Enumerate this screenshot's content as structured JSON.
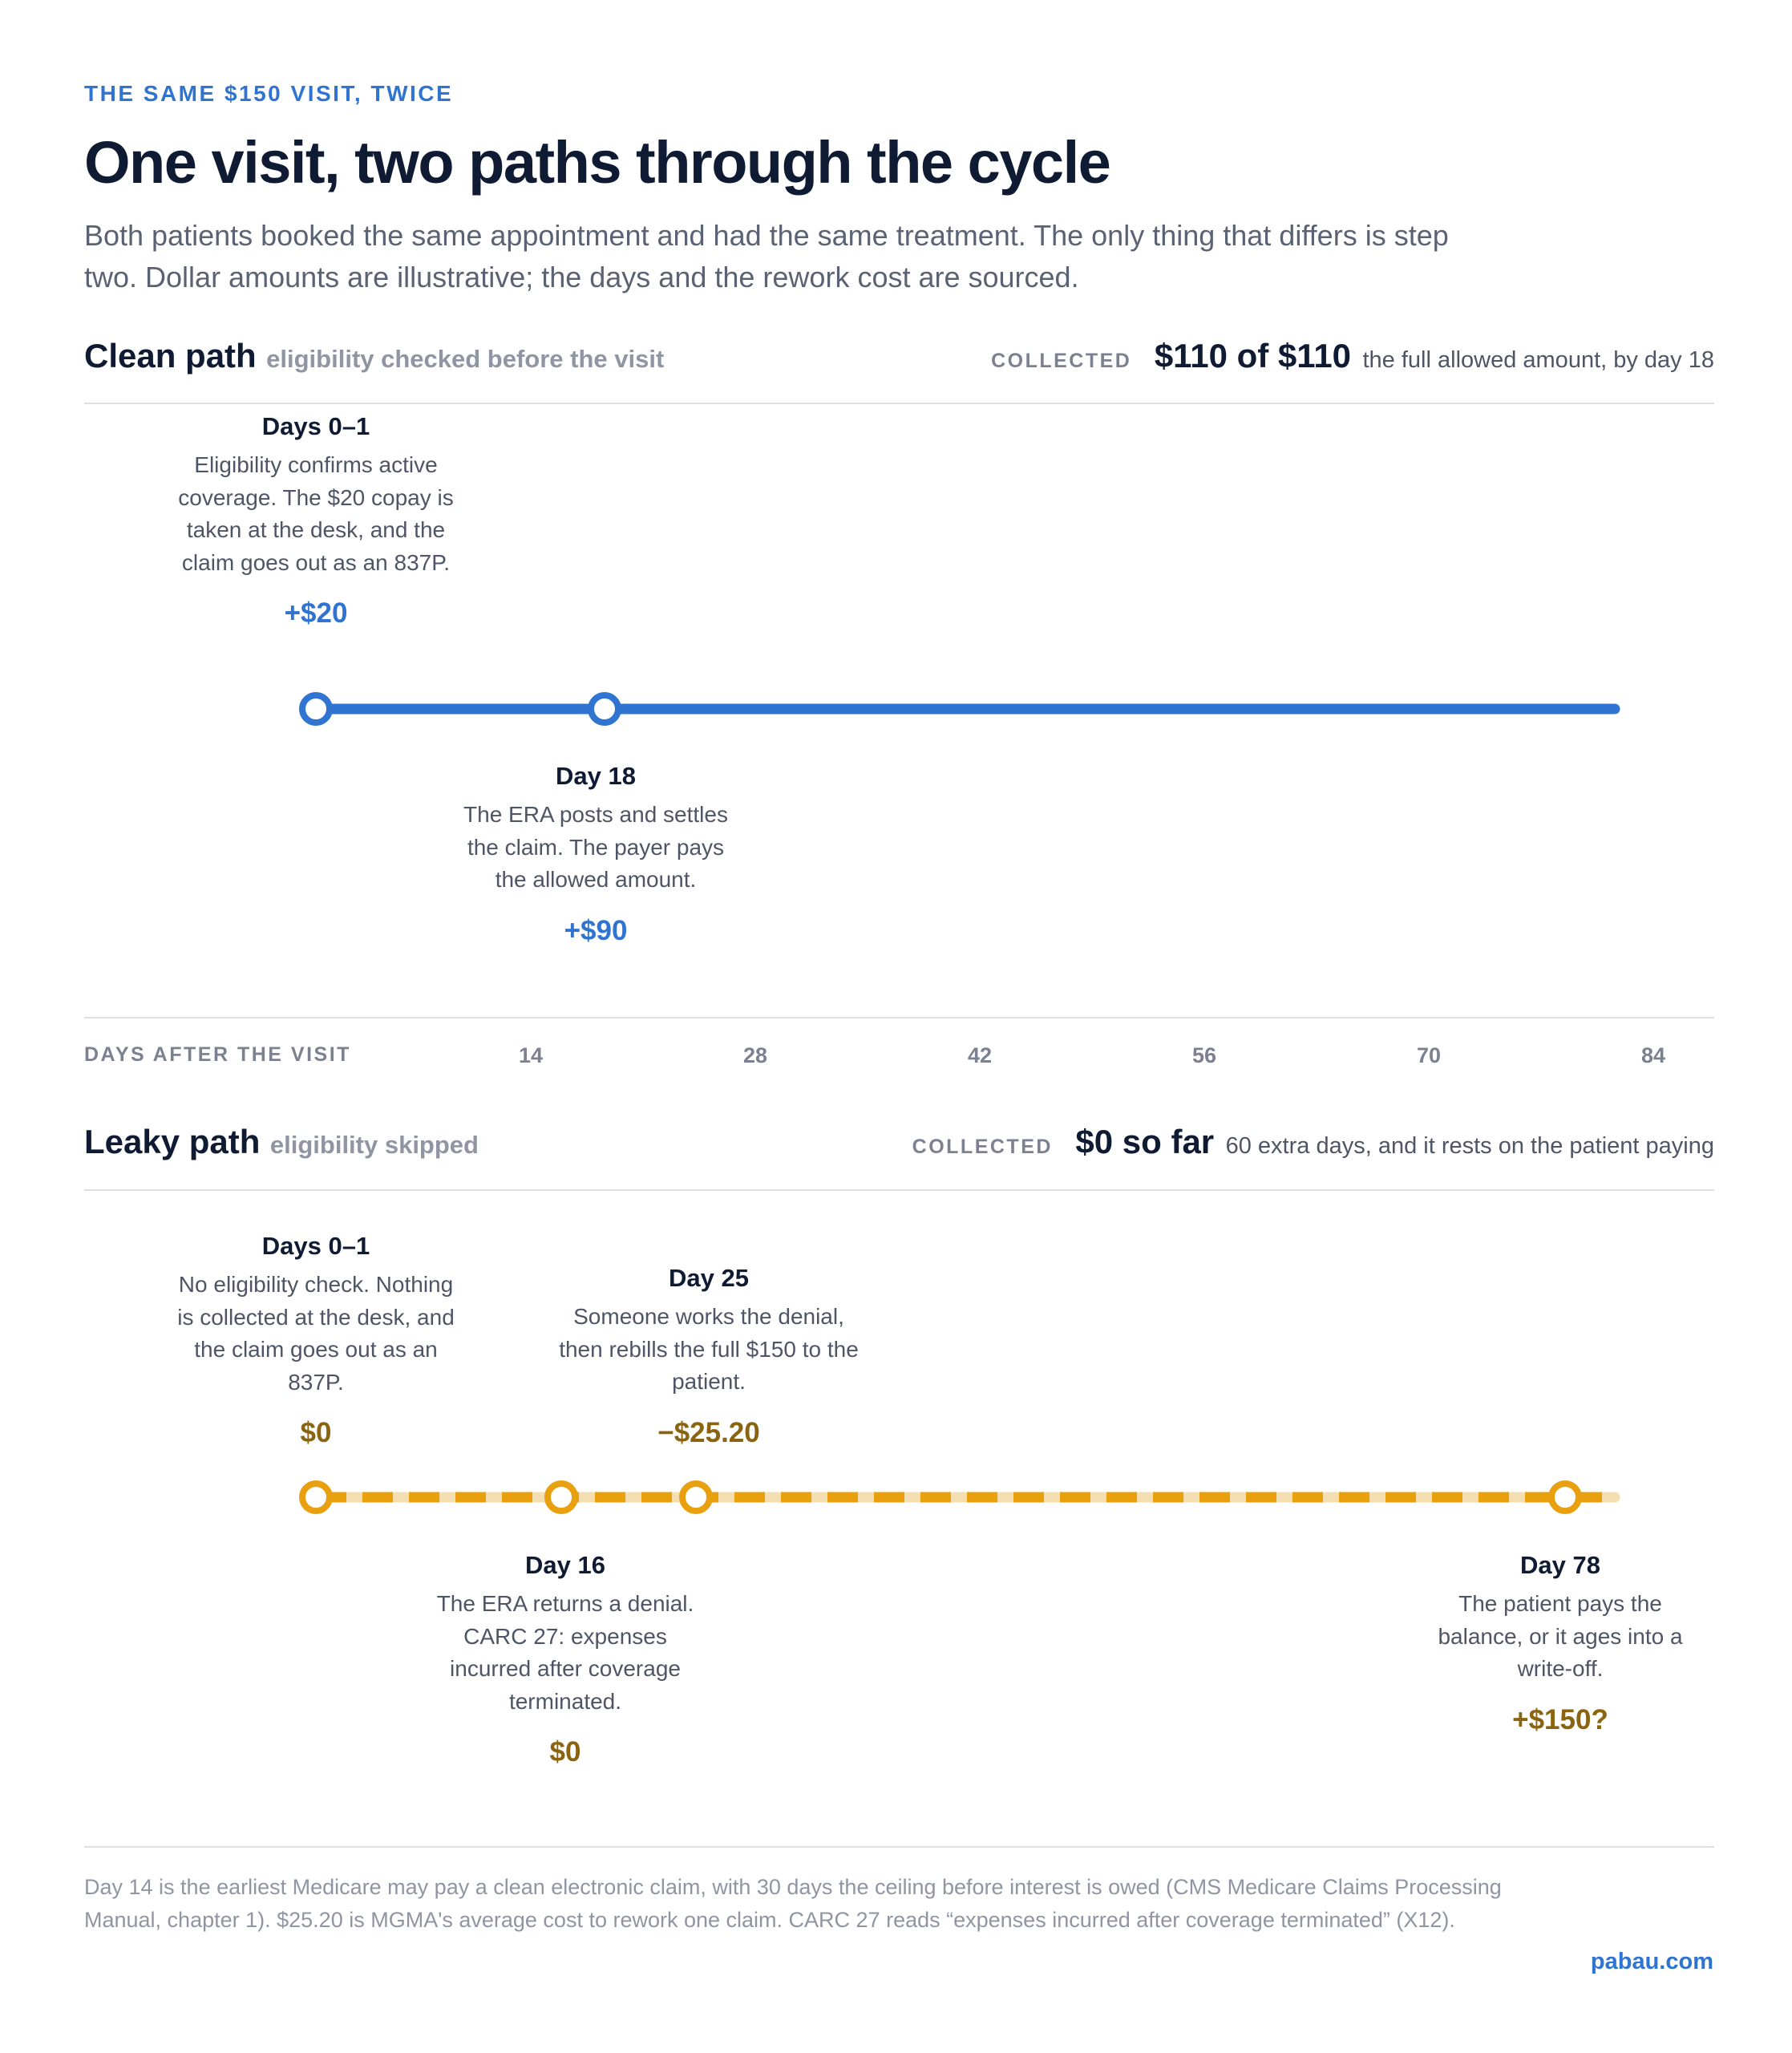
{
  "header": {
    "eyebrow": "THE SAME $150 VISIT, TWICE",
    "title": "One visit, two paths through the cycle",
    "subtitle": "Both patients booked the same appointment and had the same treatment. The only thing that differs is step two. Dollar amounts are illustrative; the days and the rework cost are sourced."
  },
  "colors": {
    "clean": "#2f74d0",
    "leaky": "#e9a00f",
    "leaky_track": "#f5dfb0",
    "leaky_amount": "#8a6410"
  },
  "clean": {
    "name": "Clean path",
    "subtitle": "eligibility checked before the visit",
    "collected_label": "COLLECTED",
    "collected_amount": "$110 of $110",
    "collected_note": "the full allowed amount, by day 18",
    "events": [
      {
        "day": 0,
        "label": "Days 0–1",
        "desc": "Eligibility confirms active coverage. The $20 copay is taken at the desk, and the claim goes out as an 837P.",
        "amount": "+$20"
      },
      {
        "day": 18,
        "label": "Day 18",
        "desc": "The ERA posts and settles the claim. The payer pays the allowed amount.",
        "amount": "+$90"
      }
    ]
  },
  "axis": {
    "label": "DAYS AFTER THE VISIT",
    "ticks": [
      "14",
      "28",
      "42",
      "56",
      "70",
      "84"
    ]
  },
  "leaky": {
    "name": "Leaky path",
    "subtitle": "eligibility skipped",
    "collected_label": "COLLECTED",
    "collected_amount": "$0 so far",
    "collected_note": "60 extra days, and it rests on the patient paying",
    "events": [
      {
        "day": 0,
        "label": "Days 0–1",
        "desc": "No eligibility check. Nothing is collected at the desk, and the claim goes out as an 837P.",
        "amount": "$0"
      },
      {
        "day": 16,
        "label": "Day 16",
        "desc": "The ERA returns a denial. CARC 27: expenses incurred after coverage terminated.",
        "amount": "$0"
      },
      {
        "day": 25,
        "label": "Day 25",
        "desc": "Someone works the denial, then rebills the full $150 to the patient.",
        "amount": "−$25.20"
      },
      {
        "day": 78,
        "label": "Day 78",
        "desc": "The patient pays the balance, or it ages into a write-off.",
        "amount": "+$150?"
      }
    ]
  },
  "footnote": "Day 14 is the earliest Medicare may pay a clean electronic claim, with 30 days the ceiling before interest is owed (CMS Medicare Claims Processing Manual, chapter 1). $25.20 is MGMA's average cost to rework one claim. CARC 27 reads “expenses incurred after coverage terminated” (X12).",
  "brand": "pabau.com"
}
